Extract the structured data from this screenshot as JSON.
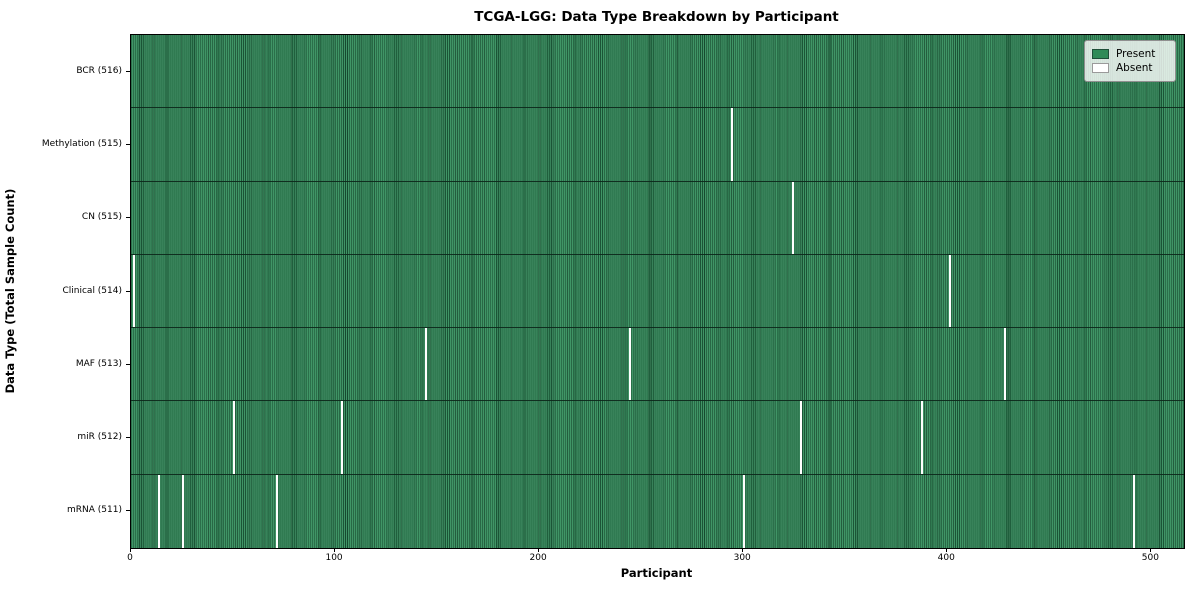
{
  "title": "TCGA-LGG: Data Type Breakdown by Participant",
  "x_axis_title": "Participant",
  "y_axis_title": "Data Type (Total Sample Count)",
  "legend": {
    "present_label": "Present",
    "absent_label": "Absent"
  },
  "colors": {
    "present": "#2e8b57",
    "present_edge": "#1e4f38",
    "absent": "#ffffff",
    "background": "#ffffff"
  },
  "chart_data": {
    "type": "heatmap",
    "title": "TCGA-LGG: Data Type Breakdown by Participant",
    "xlabel": "Participant",
    "ylabel": "Data Type (Total Sample Count)",
    "legend_entries": [
      {
        "label": "Present",
        "color": "#2e8b57"
      },
      {
        "label": "Absent",
        "color": "#ffffff"
      }
    ],
    "legend_position": "upper right",
    "n_participants": 516,
    "xlim": [
      0,
      516
    ],
    "x_ticks": [
      0,
      100,
      200,
      300,
      400,
      500
    ],
    "rows": [
      {
        "label": "BCR (516)",
        "data_type": "BCR",
        "sample_count": 516,
        "absent_participants": []
      },
      {
        "label": "Methylation (515)",
        "data_type": "Methylation",
        "sample_count": 515,
        "absent_participants": [
          294
        ]
      },
      {
        "label": "CN (515)",
        "data_type": "CN",
        "sample_count": 515,
        "absent_participants": [
          324
        ]
      },
      {
        "label": "Clinical (514)",
        "data_type": "Clinical",
        "sample_count": 514,
        "absent_participants": [
          1,
          401
        ]
      },
      {
        "label": "MAF (513)",
        "data_type": "MAF",
        "sample_count": 513,
        "absent_participants": [
          144,
          244,
          428
        ]
      },
      {
        "label": "miR (512)",
        "data_type": "miR",
        "sample_count": 512,
        "absent_participants": [
          50,
          103,
          328,
          387
        ]
      },
      {
        "label": "mRNA (511)",
        "data_type": "mRNA",
        "sample_count": 511,
        "absent_participants": [
          13,
          25,
          71,
          300,
          491
        ]
      }
    ]
  }
}
